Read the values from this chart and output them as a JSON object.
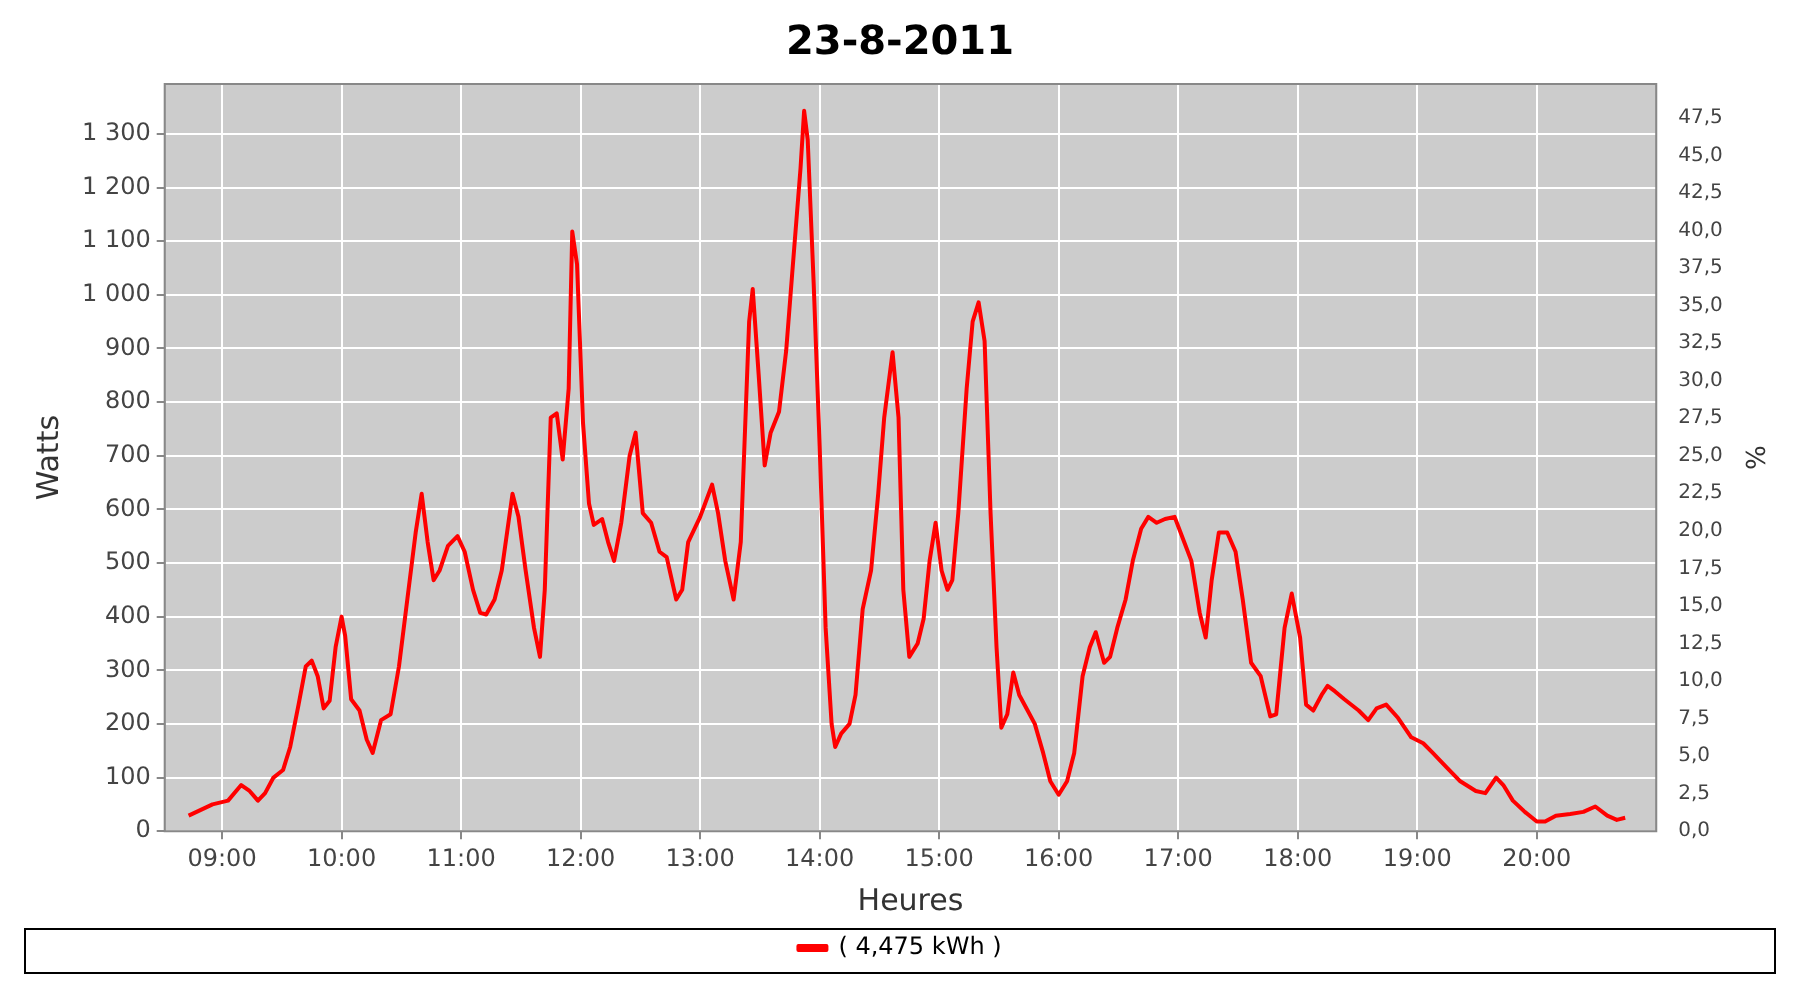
{
  "chart_data": {
    "type": "line",
    "title": "23-8-2011",
    "xlabel": "Heures",
    "ylabel": "Watts",
    "y2label": "%",
    "x": [
      8.72,
      8.92,
      9.05,
      9.16,
      9.23,
      9.3,
      9.36,
      9.43,
      9.51,
      9.57,
      9.64,
      9.7,
      9.75,
      9.8,
      9.85,
      9.9,
      9.95,
      10.0,
      10.03,
      10.08,
      10.15,
      10.21,
      10.26,
      10.33,
      10.41,
      10.48,
      10.56,
      10.62,
      10.67,
      10.72,
      10.77,
      10.82,
      10.89,
      10.97,
      11.03,
      11.1,
      11.16,
      11.21,
      11.28,
      11.34,
      11.43,
      11.48,
      11.54,
      11.61,
      11.66,
      11.7,
      11.75,
      11.8,
      11.85,
      11.9,
      11.93,
      11.97,
      12.02,
      12.07,
      12.11,
      12.18,
      12.23,
      12.28,
      12.34,
      12.41,
      12.46,
      12.52,
      12.59,
      12.66,
      12.72,
      12.8,
      12.85,
      12.9,
      13.0,
      13.1,
      13.15,
      13.21,
      13.28,
      13.34,
      13.41,
      13.44,
      13.49,
      13.54,
      13.59,
      13.66,
      13.72,
      13.77,
      13.84,
      13.87,
      13.9,
      13.95,
      14.0,
      14.05,
      14.1,
      14.13,
      14.18,
      14.25,
      14.3,
      14.36,
      14.43,
      14.49,
      14.54,
      14.61,
      14.66,
      14.7,
      14.75,
      14.82,
      14.87,
      14.92,
      14.97,
      15.02,
      15.07,
      15.11,
      15.16,
      15.23,
      15.28,
      15.33,
      15.38,
      15.43,
      15.48,
      15.52,
      15.57,
      15.62,
      15.67,
      15.74,
      15.8,
      15.87,
      15.93,
      16.0,
      16.07,
      16.13,
      16.2,
      16.26,
      16.31,
      16.38,
      16.43,
      16.49,
      16.56,
      16.62,
      16.69,
      16.75,
      16.82,
      16.89,
      16.97,
      17.05,
      17.11,
      17.18,
      17.23,
      17.28,
      17.34,
      17.41,
      17.48,
      17.54,
      17.61,
      17.69,
      17.77,
      17.82,
      17.89,
      17.95,
      18.02,
      18.07,
      18.13,
      18.2,
      18.25,
      18.31,
      18.39,
      18.51,
      18.59,
      18.66,
      18.74,
      18.84,
      18.95,
      19.05,
      19.13,
      19.25,
      19.36,
      19.49,
      19.57,
      19.66,
      19.72,
      19.8,
      19.9,
      20.0,
      20.07,
      20.16,
      20.28,
      20.39,
      20.49,
      20.59,
      20.67,
      20.74
    ],
    "series": [
      {
        "name": "( 4,475 kWh )",
        "color": "#ff0000",
        "values": [
          29,
          50,
          57,
          86,
          75,
          57,
          71,
          100,
          114,
          157,
          236,
          307,
          318,
          289,
          229,
          243,
          343,
          400,
          364,
          246,
          225,
          171,
          146,
          207,
          218,
          307,
          450,
          557,
          629,
          539,
          468,
          486,
          532,
          550,
          521,
          450,
          407,
          404,
          432,
          486,
          629,
          586,
          486,
          379,
          325,
          450,
          771,
          779,
          693,
          825,
          1118,
          1057,
          761,
          611,
          571,
          582,
          539,
          504,
          575,
          700,
          743,
          593,
          575,
          521,
          511,
          432,
          450,
          539,
          586,
          646,
          593,
          504,
          432,
          539,
          950,
          1011,
          850,
          682,
          743,
          782,
          896,
          1039,
          1236,
          1343,
          1289,
          1021,
          718,
          379,
          200,
          157,
          182,
          200,
          254,
          414,
          486,
          629,
          771,
          893,
          771,
          450,
          325,
          350,
          396,
          504,
          575,
          486,
          450,
          468,
          593,
          825,
          950,
          986,
          914,
          593,
          343,
          193,
          218,
          296,
          254,
          225,
          200,
          146,
          93,
          68,
          93,
          146,
          289,
          343,
          371,
          314,
          325,
          379,
          432,
          504,
          564,
          586,
          575,
          582,
          586,
          539,
          504,
          407,
          361,
          468,
          557,
          557,
          521,
          432,
          314,
          289,
          214,
          218,
          379,
          443,
          361,
          236,
          225,
          254,
          271,
          261,
          246,
          225,
          207,
          229,
          236,
          211,
          175,
          164,
          146,
          118,
          93,
          75,
          71,
          100,
          86,
          57,
          36,
          18,
          18,
          29,
          32,
          36,
          46,
          29,
          21,
          25
        ]
      }
    ],
    "xlim": [
      8.52,
      21.0
    ],
    "xticks": [
      {
        "value": 9,
        "label": "09:00"
      },
      {
        "value": 10,
        "label": "10:00"
      },
      {
        "value": 11,
        "label": "11:00"
      },
      {
        "value": 12,
        "label": "12:00"
      },
      {
        "value": 13,
        "label": "13:00"
      },
      {
        "value": 14,
        "label": "14:00"
      },
      {
        "value": 15,
        "label": "15:00"
      },
      {
        "value": 16,
        "label": "16:00"
      },
      {
        "value": 17,
        "label": "17:00"
      },
      {
        "value": 18,
        "label": "18:00"
      },
      {
        "value": 19,
        "label": "19:00"
      },
      {
        "value": 20,
        "label": "20:00"
      }
    ],
    "ylim": [
      0,
      1393
    ],
    "yticks": [
      0,
      100,
      200,
      300,
      400,
      500,
      600,
      700,
      800,
      900,
      {
        "value": 1000,
        "label": "1 000"
      },
      {
        "value": 1100,
        "label": "1 100"
      },
      {
        "value": 1200,
        "label": "1 200"
      },
      {
        "value": 1300,
        "label": "1 300"
      }
    ],
    "y2lim": [
      0,
      49.75
    ],
    "y2ticks": [
      {
        "value": 0,
        "label": "0,0"
      },
      {
        "value": 2.5,
        "label": "2,5"
      },
      {
        "value": 5,
        "label": "5,0"
      },
      {
        "value": 7.5,
        "label": "7,5"
      },
      {
        "value": 10,
        "label": "10,0"
      },
      {
        "value": 12.5,
        "label": "12,5"
      },
      {
        "value": 15,
        "label": "15,0"
      },
      {
        "value": 17.5,
        "label": "17,5"
      },
      {
        "value": 20,
        "label": "20,0"
      },
      {
        "value": 22.5,
        "label": "22,5"
      },
      {
        "value": 25,
        "label": "25,0"
      },
      {
        "value": 27.5,
        "label": "27,5"
      },
      {
        "value": 30,
        "label": "30,0"
      },
      {
        "value": 32.5,
        "label": "32,5"
      },
      {
        "value": 35,
        "label": "35,0"
      },
      {
        "value": 37.5,
        "label": "37,5"
      },
      {
        "value": 40,
        "label": "40,0"
      },
      {
        "value": 42.5,
        "label": "42,5"
      },
      {
        "value": 45,
        "label": "45,0"
      },
      {
        "value": 47.5,
        "label": "47,5"
      }
    ],
    "grid": true,
    "legend": "bottom",
    "marker": "none",
    "line_style": "solid"
  }
}
